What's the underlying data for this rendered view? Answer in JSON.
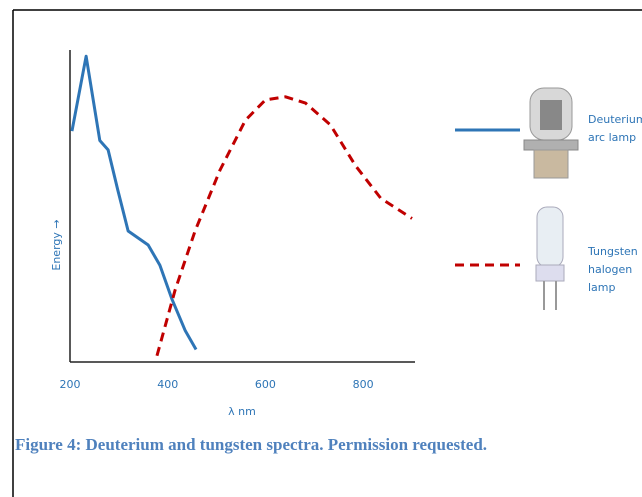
{
  "chart_data": {
    "type": "line",
    "xlabel": "λ nm",
    "ylabel": "Energy →",
    "xlim": [
      200,
      900
    ],
    "xticks": [
      200,
      400,
      600,
      800
    ],
    "ylim": [
      0,
      100
    ],
    "series": [
      {
        "name": "Deuterium arc lamp",
        "color": "#2e75b6",
        "style": "solid",
        "x": [
          204,
          233,
          261,
          278,
          298,
          319,
          360,
          384,
          409,
          436,
          458
        ],
        "values": [
          74,
          98,
          71,
          68,
          55,
          42,
          37.5,
          31,
          20,
          10,
          4
        ]
      },
      {
        "name": "Tungsten halogen lamp",
        "color": "#c00000",
        "style": "dashed",
        "x": [
          378,
          415,
          456,
          507,
          559,
          600,
          641,
          682,
          733,
          784,
          836,
          900
        ],
        "values": [
          2,
          23,
          42,
          61.5,
          77.5,
          84,
          85,
          83,
          76,
          63,
          52.5,
          46
        ]
      }
    ]
  },
  "caption": "Figure 4: Deuterium and tungsten spectra. Permission requested."
}
